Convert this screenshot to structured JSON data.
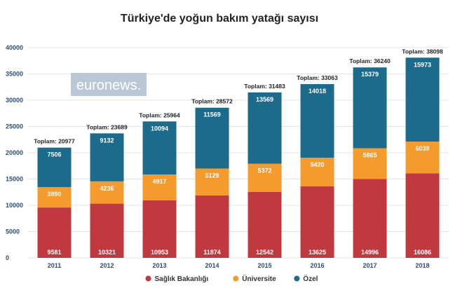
{
  "chart_data": {
    "type": "bar",
    "stacked": true,
    "title": "Türkiye'de yoğun bakım yatağı sayısı",
    "categories": [
      "2011",
      "2012",
      "2013",
      "2014",
      "2015",
      "2016",
      "2017",
      "2018"
    ],
    "series": [
      {
        "name": "Sağlık Bakanlığı",
        "color": "#c0393e",
        "values": [
          9581,
          10321,
          10953,
          11874,
          12542,
          13625,
          14996,
          16086
        ]
      },
      {
        "name": "Üniversite",
        "color": "#f59a2c",
        "values": [
          3890,
          4236,
          4917,
          5129,
          5372,
          5420,
          5865,
          6039
        ]
      },
      {
        "name": "Özel",
        "color": "#1c6a8c",
        "values": [
          7506,
          9132,
          10094,
          11569,
          13569,
          14018,
          15379,
          15973
        ]
      }
    ],
    "totals": [
      20977,
      23689,
      25964,
      28572,
      31483,
      33063,
      36240,
      38098
    ],
    "total_prefix": "Toplam: ",
    "ylim": [
      0,
      40000
    ],
    "yticks": [
      0,
      5000,
      10000,
      15000,
      20000,
      25000,
      30000,
      35000,
      40000
    ],
    "grid": true,
    "legend_position": "bottom-center",
    "watermark": "euronews."
  }
}
